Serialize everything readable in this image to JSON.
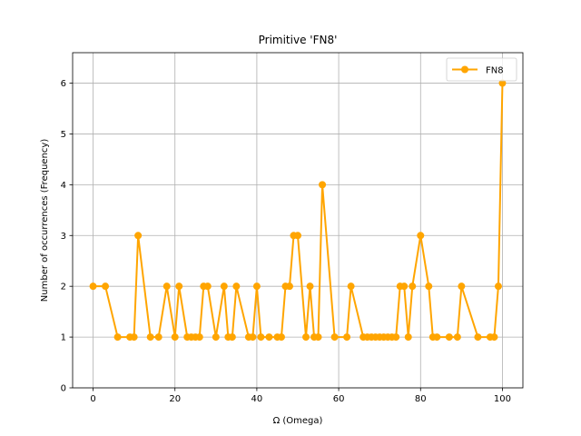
{
  "chart_data": {
    "type": "line",
    "title": "Primitive 'FN8'",
    "xlabel": "Ω (Omega)",
    "ylabel": "Number of occurrences (Frequency)",
    "xlim": [
      -5,
      105
    ],
    "ylim": [
      0,
      6.6
    ],
    "xticks": [
      0,
      20,
      40,
      60,
      80,
      100
    ],
    "yticks": [
      0,
      1,
      2,
      3,
      4,
      5,
      6
    ],
    "grid": true,
    "legend_position": "top-right",
    "series": [
      {
        "name": "FN8",
        "color": "#FFA500",
        "x": [
          0,
          3,
          6,
          9,
          10,
          11,
          14,
          16,
          18,
          20,
          21,
          23,
          24,
          25,
          26,
          27,
          28,
          30,
          32,
          33,
          34,
          35,
          38,
          39,
          40,
          41,
          43,
          45,
          46,
          47,
          48,
          49,
          50,
          52,
          53,
          54,
          55,
          56,
          59,
          62,
          63,
          66,
          67,
          68,
          69,
          70,
          71,
          72,
          73,
          74,
          75,
          76,
          77,
          78,
          80,
          82,
          83,
          84,
          87,
          89,
          90,
          94,
          97,
          98,
          99,
          100
        ],
        "y": [
          2,
          2,
          1,
          1,
          1,
          3,
          1,
          1,
          2,
          1,
          2,
          1,
          1,
          1,
          1,
          2,
          2,
          1,
          2,
          1,
          1,
          2,
          1,
          1,
          2,
          1,
          1,
          1,
          1,
          2,
          2,
          3,
          3,
          1,
          2,
          1,
          1,
          4,
          1,
          1,
          2,
          1,
          1,
          1,
          1,
          1,
          1,
          1,
          1,
          1,
          2,
          2,
          1,
          2,
          3,
          2,
          1,
          1,
          1,
          1,
          2,
          1,
          1,
          1,
          2,
          6
        ]
      }
    ]
  }
}
